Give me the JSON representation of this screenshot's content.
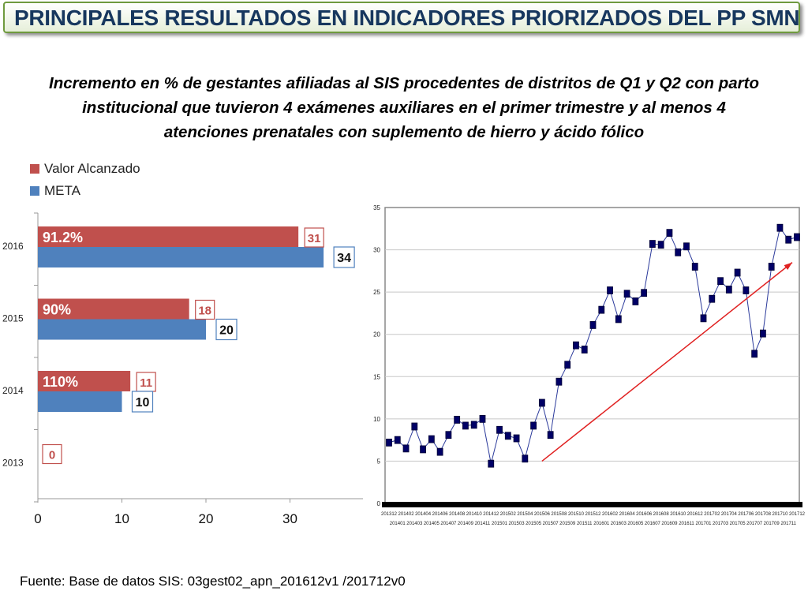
{
  "header": {
    "title": "PRINCIPALES RESULTADOS EN INDICADORES PRIORIZADOS DEL PP SMN"
  },
  "subtitle_lines": [
    "Incremento en % de gestantes afiliadas al SIS procedentes de distritos de Q1 y Q2 con parto",
    "institucional que tuvieron 4 exámenes auxiliares en el primer trimestre y al menos 4",
    "atenciones prenatales con suplemento de hierro y ácido fólico"
  ],
  "footer": {
    "source": "Fuente: Base de datos SIS: 03gest02_apn_201612v1 /201712v0"
  },
  "chart_data": [
    {
      "type": "bar",
      "orientation": "horizontal",
      "categories": [
        "2016",
        "2015",
        "2014",
        "2013"
      ],
      "series": [
        {
          "name": "Valor Alcanzado",
          "color": "#c0504d",
          "values": [
            31,
            18,
            11,
            0
          ],
          "labels": [
            "31",
            "18",
            "11",
            "0"
          ]
        },
        {
          "name": "META",
          "color": "#4f81bd",
          "values": [
            34,
            20,
            10,
            null
          ],
          "labels": [
            "34",
            "20",
            "10",
            ""
          ]
        }
      ],
      "percent_labels": [
        "91.2%",
        "90%",
        "110%",
        ""
      ],
      "xticks": [
        "0",
        "10",
        "20",
        "30"
      ],
      "xlim": [
        0,
        38
      ],
      "legend": "top-left"
    },
    {
      "type": "line",
      "x": [
        "201312",
        "201401",
        "201402",
        "201403",
        "201404",
        "201405",
        "201406",
        "201407",
        "201408",
        "201409",
        "201410",
        "201411",
        "201412",
        "201501",
        "201502",
        "201503",
        "201504",
        "201505",
        "201506",
        "201507",
        "201508",
        "201509",
        "201510",
        "201511",
        "201512",
        "201601",
        "201602",
        "201603",
        "201604",
        "201605",
        "201606",
        "201607",
        "201608",
        "201609",
        "201610",
        "201611",
        "201612",
        "201701",
        "201702",
        "201703",
        "201704",
        "201705",
        "201706",
        "201707",
        "201708",
        "201709",
        "201710",
        "201711",
        "201712"
      ],
      "y": [
        7.2,
        7.5,
        6.5,
        9.1,
        6.4,
        7.6,
        6.1,
        8.1,
        9.9,
        9.2,
        9.3,
        10.0,
        4.7,
        8.7,
        8.0,
        7.7,
        5.3,
        9.2,
        11.9,
        8.1,
        14.4,
        16.4,
        18.7,
        18.2,
        21.1,
        22.9,
        25.2,
        21.8,
        24.8,
        23.9,
        24.9,
        30.7,
        30.6,
        32.0,
        29.7,
        30.4,
        28.0,
        21.9,
        24.2,
        26.3,
        25.3,
        27.3,
        25.2,
        17.7,
        20.1,
        28.0,
        32.6,
        31.2,
        31.5
      ],
      "ylim": [
        0,
        35
      ],
      "yticks": [
        "0",
        "5",
        "10",
        "15",
        "20",
        "25",
        "30",
        "35"
      ],
      "trend_arrow": {
        "from": [
          "201506",
          5.0
        ],
        "to": [
          "201712",
          28.5
        ],
        "color": "#e02020"
      },
      "grid": true
    }
  ]
}
